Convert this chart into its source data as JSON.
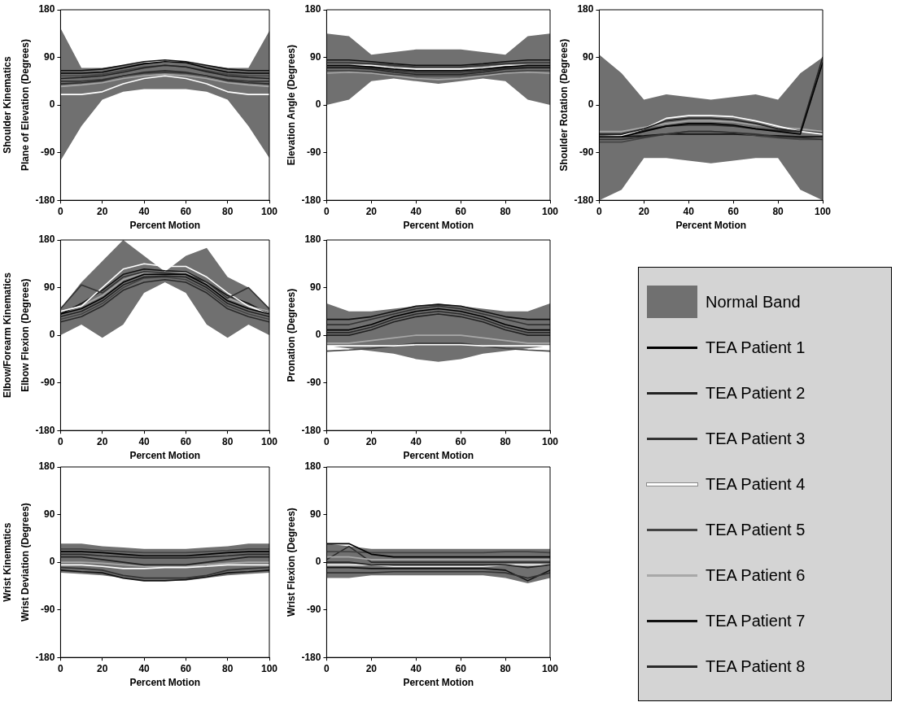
{
  "chart_data": [
    {
      "type": "line",
      "xlabel": "Percent Motion",
      "ylabel": "Plane of Elevation (Degrees)",
      "annotations": [
        "Shoulder Kinematics"
      ],
      "x": [
        0,
        10,
        20,
        30,
        40,
        50,
        60,
        70,
        80,
        90,
        100
      ],
      "xlim": [
        0,
        100
      ],
      "xticks": [
        0,
        20,
        40,
        60,
        80,
        100
      ],
      "ylim": [
        -180,
        180
      ],
      "yticks": [
        -180,
        -90,
        0,
        90,
        180
      ],
      "grid": false,
      "marker": "none",
      "series": [
        {
          "color": "#707070",
          "lower": [
            -105,
            -40,
            10,
            25,
            30,
            30,
            30,
            25,
            10,
            -40,
            -100
          ],
          "upper": [
            145,
            70,
            70,
            75,
            80,
            80,
            80,
            75,
            70,
            70,
            140
          ],
          "values": [
            null,
            null,
            null,
            null,
            null,
            null,
            null,
            null,
            null,
            null,
            null
          ]
        },
        {
          "color": "#000000",
          "values": [
            60,
            60,
            62,
            70,
            78,
            82,
            80,
            70,
            62,
            60,
            60
          ]
        },
        {
          "color": "#222222",
          "values": [
            50,
            52,
            55,
            62,
            70,
            75,
            72,
            63,
            55,
            52,
            50
          ]
        },
        {
          "color": "#333333",
          "values": [
            45,
            45,
            48,
            55,
            60,
            62,
            60,
            55,
            48,
            45,
            45
          ]
        },
        {
          "color": "#ffffff",
          "values": [
            20,
            20,
            25,
            40,
            50,
            55,
            50,
            40,
            25,
            20,
            20
          ]
        },
        {
          "color": "#444444",
          "values": [
            55,
            55,
            58,
            65,
            72,
            75,
            72,
            65,
            58,
            55,
            55
          ]
        },
        {
          "color": "#a8a8a8",
          "values": [
            35,
            38,
            42,
            50,
            55,
            58,
            55,
            50,
            42,
            38,
            35
          ]
        },
        {
          "color": "#111111",
          "values": [
            65,
            65,
            68,
            75,
            82,
            85,
            82,
            75,
            68,
            65,
            65
          ]
        },
        {
          "color": "#2a2a2a",
          "values": [
            40,
            42,
            46,
            55,
            62,
            65,
            62,
            55,
            46,
            42,
            40
          ]
        }
      ]
    },
    {
      "type": "line",
      "xlabel": "Percent Motion",
      "ylabel": "Elevation Angle (Degrees)",
      "x": [
        0,
        10,
        20,
        30,
        40,
        50,
        60,
        70,
        80,
        90,
        100
      ],
      "xlim": [
        0,
        100
      ],
      "xticks": [
        0,
        20,
        40,
        60,
        80,
        100
      ],
      "ylim": [
        -180,
        180
      ],
      "yticks": [
        -180,
        -90,
        0,
        90,
        180
      ],
      "grid": false,
      "marker": "none",
      "series": [
        {
          "color": "#707070",
          "lower": [
            0,
            10,
            45,
            50,
            45,
            40,
            45,
            50,
            45,
            10,
            0
          ],
          "upper": [
            135,
            130,
            95,
            100,
            105,
            105,
            105,
            100,
            95,
            130,
            135
          ],
          "values": [
            null,
            null,
            null,
            null,
            null,
            null,
            null,
            null,
            null,
            null,
            null
          ]
        },
        {
          "color": "#000000",
          "values": [
            75,
            75,
            72,
            68,
            65,
            65,
            65,
            68,
            72,
            75,
            75
          ]
        },
        {
          "color": "#222222",
          "values": [
            70,
            70,
            68,
            62,
            58,
            58,
            58,
            62,
            68,
            70,
            70
          ]
        },
        {
          "color": "#333333",
          "values": [
            80,
            80,
            78,
            75,
            72,
            72,
            72,
            75,
            78,
            80,
            80
          ]
        },
        {
          "color": "#ffffff",
          "values": [
            75,
            75,
            75,
            70,
            68,
            68,
            68,
            70,
            75,
            75,
            75
          ]
        },
        {
          "color": "#444444",
          "values": [
            65,
            65,
            63,
            58,
            55,
            55,
            55,
            58,
            63,
            65,
            65
          ]
        },
        {
          "color": "#a8a8a8",
          "values": [
            60,
            62,
            60,
            55,
            50,
            48,
            50,
            55,
            60,
            62,
            60
          ]
        },
        {
          "color": "#111111",
          "values": [
            85,
            85,
            82,
            78,
            75,
            75,
            75,
            78,
            82,
            85,
            85
          ]
        },
        {
          "color": "#2a2a2a",
          "values": [
            72,
            72,
            70,
            65,
            62,
            62,
            62,
            65,
            70,
            72,
            72
          ]
        }
      ]
    },
    {
      "type": "line",
      "xlabel": "Percent Motion",
      "ylabel": "Shoulder Rotation (Degrees)",
      "x": [
        0,
        10,
        20,
        30,
        40,
        50,
        60,
        70,
        80,
        90,
        100
      ],
      "xlim": [
        0,
        100
      ],
      "xticks": [
        0,
        20,
        40,
        60,
        80,
        100
      ],
      "ylim": [
        -180,
        180
      ],
      "yticks": [
        -180,
        -90,
        0,
        90,
        180
      ],
      "grid": false,
      "marker": "none",
      "series": [
        {
          "color": "#707070",
          "lower": [
            -180,
            -160,
            -100,
            -100,
            -105,
            -110,
            -105,
            -100,
            -100,
            -160,
            -180
          ],
          "upper": [
            95,
            60,
            10,
            20,
            15,
            10,
            15,
            20,
            10,
            60,
            90
          ],
          "values": [
            null,
            null,
            null,
            null,
            null,
            null,
            null,
            null,
            null,
            null,
            null
          ]
        },
        {
          "color": "#000000",
          "values": [
            -60,
            -60,
            -50,
            -40,
            -35,
            -35,
            -38,
            -45,
            -50,
            -55,
            80
          ]
        },
        {
          "color": "#222222",
          "values": [
            -55,
            -55,
            -45,
            -30,
            -25,
            -25,
            -28,
            -35,
            -45,
            -50,
            90
          ]
        },
        {
          "color": "#333333",
          "values": [
            -65,
            -65,
            -60,
            -55,
            -50,
            -50,
            -52,
            -55,
            -60,
            -62,
            -65
          ]
        },
        {
          "color": "#ffffff",
          "values": [
            -60,
            -58,
            -45,
            -25,
            -20,
            -20,
            -22,
            -30,
            -40,
            -50,
            -55
          ]
        },
        {
          "color": "#444444",
          "values": [
            -70,
            -70,
            -62,
            -55,
            -50,
            -50,
            -52,
            -58,
            -62,
            -65,
            -65
          ]
        },
        {
          "color": "#a8a8a8",
          "values": [
            -50,
            -50,
            -42,
            -35,
            -30,
            -30,
            -32,
            -38,
            -42,
            -45,
            -50
          ]
        },
        {
          "color": "#111111",
          "values": [
            -60,
            -60,
            -58,
            -55,
            -55,
            -55,
            -55,
            -57,
            -58,
            -60,
            -60
          ]
        },
        {
          "color": "#2a2a2a",
          "values": [
            -55,
            -55,
            -48,
            -40,
            -38,
            -38,
            -40,
            -45,
            -48,
            -50,
            -52
          ]
        }
      ]
    },
    {
      "type": "line",
      "xlabel": "Percent Motion",
      "ylabel": "Elbow Flexion (Degrees)",
      "annotations": [
        "Elbow/Forearm Kinematics"
      ],
      "x": [
        0,
        10,
        20,
        30,
        40,
        50,
        60,
        70,
        80,
        90,
        100
      ],
      "xlim": [
        0,
        100
      ],
      "xticks": [
        0,
        20,
        40,
        60,
        80,
        100
      ],
      "ylim": [
        -180,
        180
      ],
      "yticks": [
        -180,
        -90,
        0,
        90,
        180
      ],
      "grid": false,
      "marker": "none",
      "series": [
        {
          "color": "#707070",
          "lower": [
            0,
            20,
            -5,
            20,
            80,
            100,
            80,
            20,
            -5,
            20,
            0
          ],
          "upper": [
            50,
            100,
            140,
            180,
            150,
            120,
            150,
            165,
            110,
            90,
            50
          ],
          "values": [
            null,
            null,
            null,
            null,
            null,
            null,
            null,
            null,
            null,
            null,
            null
          ]
        },
        {
          "color": "#000000",
          "values": [
            40,
            50,
            70,
            100,
            115,
            115,
            115,
            95,
            65,
            50,
            40
          ]
        },
        {
          "color": "#222222",
          "values": [
            35,
            45,
            65,
            95,
            110,
            112,
            110,
            90,
            60,
            45,
            35
          ]
        },
        {
          "color": "#333333",
          "values": [
            50,
            95,
            80,
            110,
            120,
            118,
            115,
            100,
            70,
            90,
            50
          ]
        },
        {
          "color": "#ffffff",
          "values": [
            45,
            55,
            90,
            125,
            135,
            130,
            130,
            110,
            80,
            55,
            40
          ]
        },
        {
          "color": "#444444",
          "values": [
            30,
            40,
            60,
            90,
            108,
            110,
            105,
            85,
            55,
            40,
            30
          ]
        },
        {
          "color": "#a8a8a8",
          "values": [
            45,
            55,
            75,
            105,
            118,
            118,
            118,
            98,
            70,
            55,
            45
          ]
        },
        {
          "color": "#111111",
          "values": [
            40,
            60,
            85,
            115,
            125,
            122,
            120,
            100,
            75,
            60,
            40
          ]
        },
        {
          "color": "#2a2a2a",
          "values": [
            25,
            35,
            55,
            85,
            100,
            105,
            100,
            80,
            50,
            35,
            25
          ]
        }
      ]
    },
    {
      "type": "line",
      "xlabel": "Percent Motion",
      "ylabel": "Pronation (Degrees)",
      "legend": "right",
      "x": [
        0,
        10,
        20,
        30,
        40,
        50,
        60,
        70,
        80,
        90,
        100
      ],
      "xlim": [
        0,
        100
      ],
      "xticks": [
        0,
        20,
        40,
        60,
        80,
        100
      ],
      "ylim": [
        -180,
        180
      ],
      "yticks": [
        -180,
        -90,
        0,
        90,
        180
      ],
      "grid": false,
      "marker": "none",
      "series": [
        {
          "name": "Normal Band",
          "color": "#707070",
          "lower": [
            -20,
            -25,
            -30,
            -35,
            -45,
            -50,
            -45,
            -35,
            -30,
            -25,
            -20
          ],
          "upper": [
            60,
            45,
            45,
            50,
            55,
            60,
            55,
            50,
            45,
            45,
            60
          ],
          "values": [
            null,
            null,
            null,
            null,
            null,
            null,
            null,
            null,
            null,
            null,
            null
          ]
        },
        {
          "name": "TEA Patient 1",
          "color": "#000000",
          "values": [
            10,
            10,
            20,
            35,
            45,
            50,
            45,
            35,
            20,
            10,
            10
          ]
        },
        {
          "name": "TEA Patient 2",
          "color": "#222222",
          "values": [
            0,
            0,
            10,
            25,
            35,
            40,
            35,
            25,
            10,
            0,
            0
          ]
        },
        {
          "name": "TEA Patient 3",
          "color": "#333333",
          "values": [
            20,
            20,
            30,
            40,
            50,
            55,
            50,
            40,
            30,
            20,
            20
          ]
        },
        {
          "name": "TEA Patient 4",
          "color": "#ffffff",
          "values": [
            -20,
            -20,
            -20,
            -20,
            -18,
            -18,
            -18,
            -20,
            -20,
            -20,
            -20
          ]
        },
        {
          "name": "TEA Patient 5",
          "color": "#444444",
          "values": [
            -30,
            -28,
            -25,
            -20,
            -15,
            -15,
            -15,
            -20,
            -25,
            -28,
            -30
          ]
        },
        {
          "name": "TEA Patient 6",
          "color": "#a8a8a8",
          "values": [
            -15,
            -15,
            -10,
            -5,
            0,
            0,
            0,
            -5,
            -10,
            -15,
            -15
          ]
        },
        {
          "name": "TEA Patient 7",
          "color": "#111111",
          "values": [
            30,
            30,
            35,
            45,
            55,
            58,
            55,
            45,
            35,
            30,
            30
          ]
        },
        {
          "name": "TEA Patient 8",
          "color": "#2a2a2a",
          "values": [
            5,
            5,
            15,
            30,
            40,
            45,
            40,
            30,
            15,
            5,
            5
          ]
        }
      ]
    },
    {
      "type": "line",
      "xlabel": "Percent Motion",
      "ylabel": "Wrist Deviation (Degrees)",
      "annotations": [
        "Wrist Kinematics"
      ],
      "x": [
        0,
        10,
        20,
        30,
        40,
        50,
        60,
        70,
        80,
        90,
        100
      ],
      "xlim": [
        0,
        100
      ],
      "xticks": [
        0,
        20,
        40,
        60,
        80,
        100
      ],
      "ylim": [
        -180,
        180
      ],
      "yticks": [
        -180,
        -90,
        0,
        90,
        180
      ],
      "grid": false,
      "marker": "none",
      "series": [
        {
          "color": "#707070",
          "lower": [
            -20,
            -22,
            -25,
            -30,
            -35,
            -35,
            -35,
            -30,
            -25,
            -22,
            -20
          ],
          "upper": [
            35,
            35,
            30,
            28,
            25,
            25,
            25,
            28,
            30,
            35,
            35
          ],
          "values": [
            null,
            null,
            null,
            null,
            null,
            null,
            null,
            null,
            null,
            null,
            null
          ]
        },
        {
          "color": "#000000",
          "values": [
            20,
            20,
            18,
            15,
            12,
            12,
            12,
            15,
            18,
            20,
            20
          ]
        },
        {
          "color": "#222222",
          "values": [
            10,
            10,
            5,
            0,
            -5,
            -5,
            -5,
            0,
            5,
            10,
            10
          ]
        },
        {
          "color": "#333333",
          "values": [
            -10,
            -12,
            -15,
            -25,
            -30,
            -30,
            -30,
            -25,
            -15,
            -12,
            -10
          ]
        },
        {
          "color": "#ffffff",
          "values": [
            -5,
            -5,
            -8,
            -12,
            -12,
            -10,
            -10,
            -8,
            -5,
            -5,
            -5
          ]
        },
        {
          "color": "#444444",
          "values": [
            25,
            25,
            22,
            20,
            18,
            18,
            18,
            20,
            22,
            25,
            25
          ]
        },
        {
          "color": "#a8a8a8",
          "values": [
            0,
            0,
            -2,
            -5,
            -8,
            -8,
            -8,
            -5,
            -2,
            0,
            0
          ]
        },
        {
          "color": "#111111",
          "values": [
            -15,
            -18,
            -20,
            -30,
            -35,
            -35,
            -33,
            -28,
            -20,
            -18,
            -15
          ]
        },
        {
          "color": "#2a2a2a",
          "values": [
            15,
            15,
            12,
            10,
            8,
            8,
            8,
            10,
            12,
            15,
            15
          ]
        }
      ]
    },
    {
      "type": "line",
      "xlabel": "Percent Motion",
      "ylabel": "Wrist Flexion (Degrees)",
      "x": [
        0,
        10,
        20,
        30,
        40,
        50,
        60,
        70,
        80,
        90,
        100
      ],
      "xlim": [
        0,
        100
      ],
      "xticks": [
        0,
        20,
        40,
        60,
        80,
        100
      ],
      "ylim": [
        -180,
        180
      ],
      "yticks": [
        -180,
        -90,
        0,
        90,
        180
      ],
      "grid": false,
      "marker": "none",
      "series": [
        {
          "color": "#707070",
          "lower": [
            -30,
            -30,
            -25,
            -25,
            -25,
            -25,
            -25,
            -25,
            -30,
            -40,
            -30
          ],
          "upper": [
            35,
            30,
            25,
            25,
            25,
            25,
            25,
            25,
            25,
            25,
            25
          ],
          "values": [
            null,
            null,
            null,
            null,
            null,
            null,
            null,
            null,
            null,
            null,
            null
          ]
        },
        {
          "color": "#000000",
          "values": [
            35,
            35,
            15,
            10,
            10,
            10,
            10,
            10,
            10,
            10,
            10
          ]
        },
        {
          "color": "#222222",
          "values": [
            0,
            0,
            -5,
            -5,
            -5,
            -5,
            -5,
            -5,
            -5,
            -10,
            -5
          ]
        },
        {
          "color": "#333333",
          "values": [
            -20,
            -20,
            -20,
            -18,
            -18,
            -18,
            -18,
            -18,
            -20,
            -30,
            -20
          ]
        },
        {
          "color": "#ffffff",
          "values": [
            -5,
            -5,
            -5,
            -8,
            -8,
            -8,
            -8,
            -8,
            -5,
            -5,
            -5
          ]
        },
        {
          "color": "#444444",
          "values": [
            20,
            20,
            18,
            18,
            18,
            18,
            18,
            18,
            20,
            20,
            18
          ]
        },
        {
          "color": "#a8a8a8",
          "values": [
            10,
            10,
            5,
            5,
            5,
            5,
            5,
            5,
            5,
            5,
            5
          ]
        },
        {
          "color": "#111111",
          "values": [
            -10,
            -10,
            -12,
            -12,
            -12,
            -12,
            -12,
            -12,
            -15,
            -35,
            -15
          ]
        },
        {
          "color": "#2a2a2a",
          "values": [
            5,
            30,
            0,
            0,
            0,
            0,
            0,
            0,
            0,
            0,
            0
          ]
        }
      ]
    }
  ]
}
